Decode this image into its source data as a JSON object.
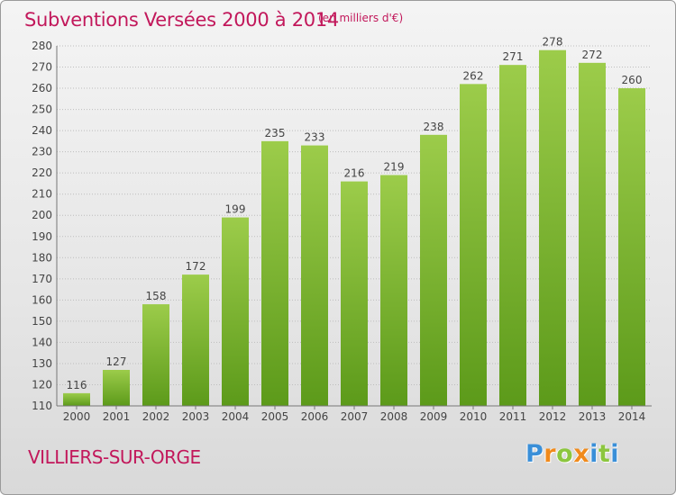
{
  "header": {
    "title": "Subventions Versées 2000 à 2014",
    "unit": "(en milliers d'€)"
  },
  "footer": {
    "commune": "VILLIERS-SUR-ORGE",
    "logo_text": "Proxiti"
  },
  "colors": {
    "title": "#c2185b",
    "bar_top": "#9ccc4a",
    "bar_bottom": "#5c9a1a",
    "grid": "#bdbdbd",
    "logo_letters": [
      "#3a8fd8",
      "#f08a1c",
      "#8cc63f",
      "#f08a1c",
      "#3a8fd8",
      "#8cc63f",
      "#3a8fd8"
    ]
  },
  "chart_data": {
    "type": "bar",
    "title": "Subventions Versées 2000 à 2014",
    "subtitle": "(en milliers d'€)",
    "categories": [
      "2000",
      "2001",
      "2002",
      "2003",
      "2004",
      "2005",
      "2006",
      "2007",
      "2008",
      "2009",
      "2010",
      "2011",
      "2012",
      "2013",
      "2014"
    ],
    "values": [
      116,
      127,
      158,
      172,
      199,
      235,
      233,
      216,
      219,
      238,
      262,
      271,
      278,
      272,
      260
    ],
    "ylim": [
      110,
      280
    ],
    "yticks": [
      110,
      120,
      130,
      140,
      150,
      160,
      170,
      180,
      190,
      200,
      210,
      220,
      230,
      240,
      250,
      260,
      270,
      280
    ],
    "grid": true,
    "legend": "none"
  }
}
